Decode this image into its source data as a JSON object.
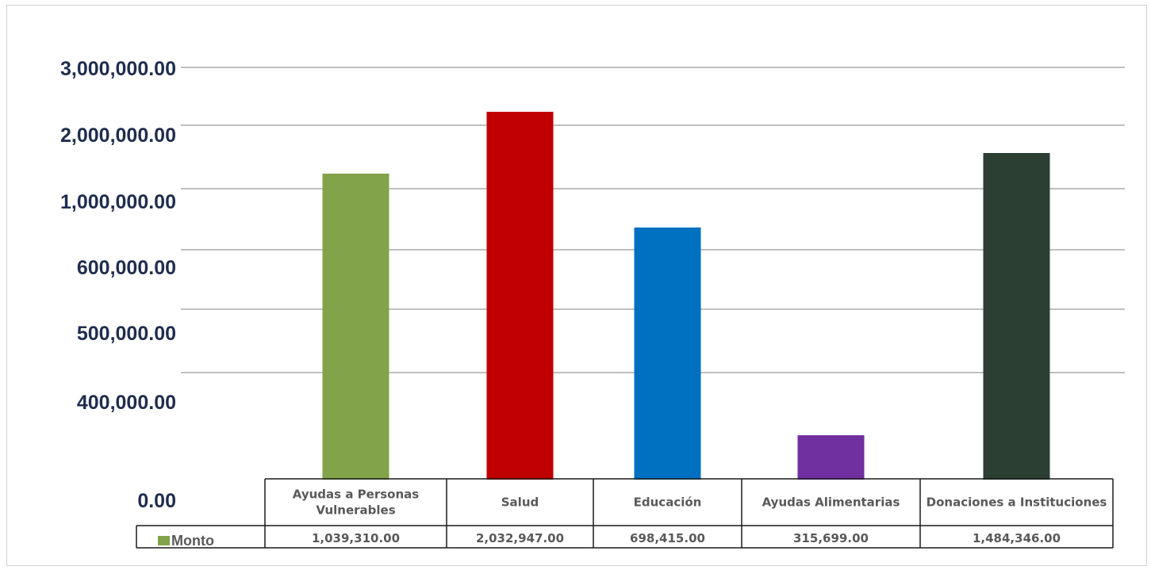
{
  "chart_data": {
    "type": "bar",
    "categories": [
      [
        "Ayudas a Personas",
        "Vulnerables"
      ],
      [
        "Salud"
      ],
      [
        "Educación"
      ],
      [
        "Ayudas Alimentarias"
      ],
      [
        "Donaciones a Instituciones"
      ]
    ],
    "series": [
      {
        "name": "Monto",
        "values": [
          1039310,
          2032947,
          698415,
          315699,
          1484346
        ],
        "value_labels": [
          "1,039,310.00",
          "2,032,947.00",
          "698,415.00",
          "315,699.00",
          "1,484,346.00"
        ],
        "colors": [
          "#82a34a",
          "#c00000",
          "#0070c0",
          "#7030a0",
          "#2b3f33"
        ]
      }
    ],
    "y_tick_labels": [
      "0.00",
      "400,000.00",
      "500,000.00",
      "600,000.00",
      "1,000,000.00",
      "2,000,000.00",
      "3,000,000.00"
    ],
    "grid": true,
    "legend": "data-table-left",
    "legend_swatch_color": "#82a34a"
  }
}
